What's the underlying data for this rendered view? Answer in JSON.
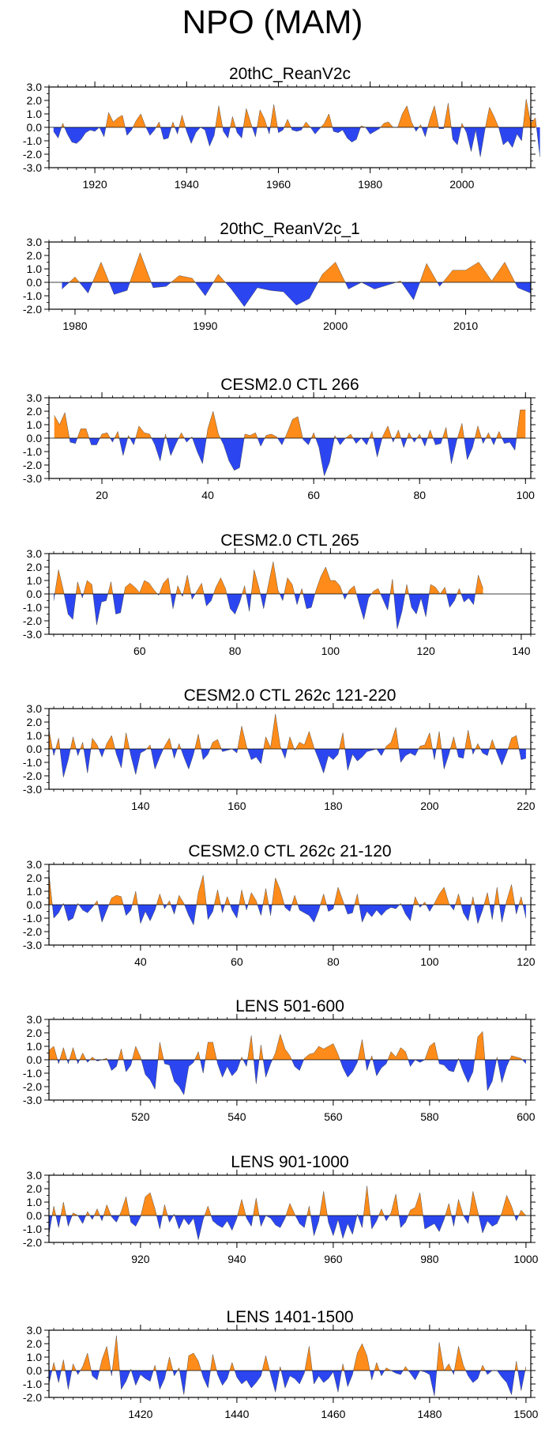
{
  "title": "NPO (MAM)",
  "colors": {
    "positive": "#ff8c1a",
    "negative": "#2b46f0",
    "axis": "#000000"
  },
  "chart_data": [
    {
      "type": "area",
      "title": "20thC_ReanV2c",
      "xlim": [
        1910,
        2015
      ],
      "ylim": [
        -3,
        3
      ],
      "yticks": [
        "3.0",
        "2.0",
        "1.0",
        "0.0",
        "-1.0",
        "-2.0",
        "-3.0"
      ],
      "xticks": [
        1920,
        1940,
        1960,
        1980,
        2000
      ],
      "x_start": 1911,
      "values": [
        -0.3,
        -0.8,
        0.3,
        -0.5,
        -1.1,
        -1.2,
        -0.9,
        -0.4,
        -0.2,
        -0.3,
        0.0,
        -0.7,
        1.1,
        0.4,
        0.7,
        0.9,
        -0.6,
        -0.2,
        0.5,
        1.0,
        0.1,
        -0.6,
        -0.2,
        0.4,
        -0.9,
        -0.8,
        0.4,
        -0.5,
        0.9,
        -0.3,
        -1.2,
        -0.4,
        0.0,
        -0.2,
        -1.4,
        -0.6,
        1.6,
        -0.3,
        -0.8,
        0.8,
        -0.4,
        -0.8,
        1.4,
        0.3,
        -0.7,
        1.3,
        0.6,
        -0.5,
        1.7,
        -0.4,
        -0.2,
        0.6,
        -0.2,
        -0.3,
        -0.2,
        0.4,
        0.0,
        -0.5,
        -0.1,
        0.3,
        1.0,
        -0.3,
        -0.4,
        -0.2,
        -0.8,
        -1.1,
        -0.9,
        0.1,
        0.0,
        -0.5,
        -0.3,
        -0.1,
        0.3,
        0.4,
        0.0,
        0.0,
        1.0,
        1.6,
        0.4,
        -0.3,
        0.2,
        -0.7,
        0.6,
        1.6,
        -0.1,
        -0.1,
        1.8,
        -0.9,
        -1.3,
        0.3,
        -0.4,
        -1.8,
        -0.2,
        -2.2,
        -0.2,
        1.5,
        0.8,
        0.0,
        -1.3,
        -1.0,
        -1.5,
        -0.5,
        -1.0,
        2.1,
        0.3,
        0.7,
        -2.2
      ]
    },
    {
      "type": "area",
      "title": "20thC_ReanV2c_1",
      "xlim": [
        1978,
        2015
      ],
      "ylim": [
        -2,
        3
      ],
      "yticks": [
        "3.0",
        "2.0",
        "1.0",
        "0.0",
        "-1.0",
        "-2.0"
      ],
      "xticks": [
        1980,
        1990,
        2000,
        2010
      ],
      "x_start": 1979,
      "values": [
        -0.5,
        0.4,
        -0.8,
        1.5,
        -0.9,
        -0.6,
        2.2,
        -0.4,
        -0.3,
        0.5,
        0.3,
        -1.0,
        0.6,
        -0.5,
        -1.8,
        -0.4,
        -0.6,
        -0.7,
        -1.7,
        -1.2,
        0.6,
        1.5,
        -0.5,
        0.0,
        -0.5,
        -0.2,
        0.1,
        -1.3,
        1.4,
        -0.3,
        0.9,
        0.9,
        1.5,
        0.1,
        1.5,
        -0.4,
        -0.8
      ]
    },
    {
      "type": "area",
      "title": "CESM2.0 CTL 266",
      "xlim": [
        10,
        101
      ],
      "ylim": [
        -3,
        3
      ],
      "yticks": [
        "3.0",
        "2.0",
        "1.0",
        "0.0",
        "-1.0",
        "-2.0",
        "-3.0"
      ],
      "xticks": [
        20,
        40,
        60,
        80,
        100
      ],
      "x_start": 11,
      "values": [
        1.7,
        1.0,
        1.9,
        -0.3,
        -0.4,
        0.7,
        0.7,
        -0.5,
        -0.5,
        0.3,
        0.4,
        -0.3,
        0.5,
        -1.3,
        0.2,
        -0.5,
        0.9,
        0.4,
        0.3,
        -0.5,
        -1.7,
        0.3,
        -1.3,
        -0.4,
        0.4,
        -0.3,
        0.1,
        -1.0,
        -1.9,
        0.7,
        2.0,
        0.3,
        -0.5,
        -1.7,
        -2.4,
        -2.2,
        0.3,
        0.2,
        0.4,
        -0.6,
        0.2,
        0.3,
        0.1,
        -0.5,
        0.4,
        1.4,
        1.6,
        -0.1,
        -0.5,
        0.4,
        -0.7,
        -2.8,
        -1.8,
        0.2,
        -0.5,
        0.0,
        0.3,
        -0.4,
        0.0,
        -0.5,
        0.5,
        -1.4,
        0.1,
        0.9,
        -0.3,
        0.6,
        -0.7,
        0.4,
        -0.3,
        0.3,
        -0.6,
        0.6,
        -0.5,
        -0.4,
        0.8,
        -1.9,
        -0.2,
        1.1,
        -1.6,
        -0.7,
        0.9,
        -0.4,
        0.4,
        -0.5,
        0.5,
        -0.4,
        -0.3,
        -0.9,
        2.1,
        2.1
      ]
    },
    {
      "type": "area",
      "title": "CESM2.0 CTL 265",
      "xlim": [
        41,
        142
      ],
      "ylim": [
        -3,
        3
      ],
      "yticks": [
        "3.0",
        "2.0",
        "1.0",
        "0.0",
        "-1.0",
        "-2.0",
        "-3.0"
      ],
      "xticks": [
        60,
        80,
        100,
        120,
        140
      ],
      "x_start": 42,
      "values": [
        -0.5,
        1.8,
        0.3,
        -1.5,
        -1.9,
        0.9,
        -0.3,
        1.0,
        0.7,
        -2.3,
        -0.6,
        -0.5,
        0.9,
        -1.5,
        -1.4,
        0.5,
        0.8,
        0.5,
        0.1,
        1.0,
        0.8,
        0.3,
        -0.1,
        0.8,
        1.2,
        -1.1,
        0.6,
        -0.2,
        1.4,
        -0.4,
        0.2,
        0.8,
        -0.9,
        -0.5,
        0.5,
        1.2,
        0.4,
        -1.1,
        -1.5,
        -0.6,
        0.6,
        -1.3,
        1.8,
        0.5,
        -1.1,
        0.7,
        2.4,
        0.3,
        -0.5,
        1.2,
        0.7,
        -0.8,
        0.4,
        -1.1,
        -1.0,
        0.3,
        1.3,
        2.0,
        1.0,
        1.0,
        0.6,
        -0.4,
        0.3,
        0.6,
        -0.7,
        -1.9,
        -0.3,
        0.2,
        0.4,
        -0.4,
        -1.2,
        1.1,
        -2.6,
        -1.3,
        0.7,
        -1.0,
        -1.5,
        -0.3,
        -1.7,
        0.7,
        0.5,
        0.0,
        0.5,
        -1.0,
        -0.5,
        0.4,
        -0.6,
        -0.3,
        -0.8,
        1.4,
        0.4
      ]
    },
    {
      "type": "area",
      "title": "CESM2.0 CTL 262c 121-220",
      "xlim": [
        121,
        221
      ],
      "ylim": [
        -3,
        3
      ],
      "yticks": [
        "3.0",
        "2.0",
        "1.0",
        "0.0",
        "-1.0",
        "-2.0",
        "-3.0"
      ],
      "xticks": [
        140,
        160,
        180,
        200,
        220
      ],
      "x_start": 121,
      "values": [
        1.4,
        -0.5,
        0.8,
        -2.1,
        -0.8,
        0.9,
        -0.5,
        0.5,
        -1.8,
        0.8,
        0.3,
        -0.6,
        0.4,
        1.0,
        -0.4,
        -1.4,
        1.2,
        -0.5,
        -1.9,
        -0.3,
        -0.1,
        0.3,
        -1.5,
        -0.6,
        0.2,
        0.8,
        -0.7,
        0.4,
        -0.6,
        -1.5,
        -0.4,
        1.1,
        -0.8,
        -0.4,
        0.5,
        0.7,
        -0.2,
        -0.1,
        0.0,
        -0.3,
        1.7,
        0.2,
        -0.8,
        -0.6,
        -1.1,
        0.9,
        0.1,
        2.6,
        0.2,
        -0.7,
        0.9,
        -0.1,
        0.5,
        0.3,
        1.3,
        0.1,
        -0.8,
        -1.8,
        -0.5,
        -0.8,
        -0.4,
        1.2,
        -1.6,
        -0.4,
        -0.9,
        -0.6,
        -0.2,
        -0.1,
        0.0,
        -0.5,
        0.2,
        0.5,
        1.6,
        -1.0,
        -0.5,
        -0.3,
        -0.5,
        0.2,
        0.3,
        1.2,
        -0.8,
        1.3,
        -1.5,
        -0.4,
        0.9,
        -0.6,
        -0.7,
        1.4,
        -0.4,
        0.4,
        -0.3,
        -0.5,
        0.7,
        -0.3,
        -1.2,
        -0.3,
        0.8,
        1.0,
        -0.8,
        -0.7
      ]
    },
    {
      "type": "area",
      "title": "CESM2.0 CTL 262c 21-120",
      "xlim": [
        21,
        121
      ],
      "ylim": [
        -3,
        3
      ],
      "yticks": [
        "3.0",
        "2.0",
        "1.0",
        "0.0",
        "-1.0",
        "-2.0",
        "-3.0"
      ],
      "xticks": [
        40,
        60,
        80,
        100,
        120
      ],
      "x_start": 21,
      "values": [
        2.3,
        -1.0,
        -0.6,
        0.1,
        -1.2,
        -1.0,
        0.1,
        -0.4,
        -0.6,
        -0.2,
        0.3,
        -1.3,
        -0.4,
        0.5,
        0.7,
        0.6,
        -0.8,
        -0.4,
        1.0,
        -1.4,
        -0.5,
        -1.2,
        -0.4,
        0.8,
        -0.3,
        0.3,
        -0.7,
        0.7,
        0.1,
        -0.8,
        -1.5,
        0.9,
        2.2,
        -1.1,
        -0.5,
        1.1,
        -0.6,
        0.6,
        -0.4,
        -1.0,
        1.1,
        -0.4,
        0.9,
        0.3,
        -0.8,
        1.2,
        -0.8,
        2.0,
        1.1,
        -0.2,
        -0.5,
        0.7,
        -0.4,
        -0.6,
        -0.8,
        -1.3,
        -0.4,
        0.8,
        -0.5,
        -0.3,
        1.3,
        0.3,
        -0.7,
        -0.6,
        0.8,
        -1.3,
        -0.5,
        -0.9,
        -0.4,
        -0.8,
        -0.4,
        -0.2,
        -0.3,
        0.1,
        -0.7,
        -1.2,
        0.6,
        -0.2,
        0.2,
        -0.5,
        0.1,
        0.8,
        1.3,
        0.1,
        -0.4,
        0.8,
        -0.6,
        -1.2,
        0.6,
        -1.4,
        -0.4,
        0.9,
        -1.1,
        1.3,
        -1.3,
        0.3,
        1.5,
        -0.7,
        0.6,
        -1.0
      ]
    },
    {
      "type": "area",
      "title": "LENS 501-600",
      "xlim": [
        501,
        601
      ],
      "ylim": [
        -3,
        3
      ],
      "yticks": [
        "3.0",
        "2.0",
        "1.0",
        "0.0",
        "-1.0",
        "-2.0",
        "-3.0"
      ],
      "xticks": [
        520,
        540,
        560,
        580,
        600
      ],
      "x_start": 501,
      "values": [
        0.7,
        1.0,
        -0.3,
        0.9,
        -0.3,
        0.9,
        -0.3,
        0.5,
        -0.2,
        0.2,
        -0.1,
        0.0,
        0.1,
        -0.8,
        -0.5,
        0.8,
        -0.9,
        -0.4,
        1.0,
        0.2,
        -1.1,
        -1.5,
        -2.2,
        1.3,
        -0.3,
        -0.4,
        -1.6,
        -2.0,
        -2.6,
        -0.5,
        -0.2,
        0.6,
        -1.0,
        1.3,
        1.3,
        -0.3,
        -1.3,
        -0.5,
        -1.2,
        -0.8,
        0.2,
        -0.5,
        1.8,
        -1.8,
        1.1,
        -1.3,
        -0.3,
        0.5,
        1.9,
        0.8,
        0.3,
        -0.5,
        -0.8,
        0.1,
        0.4,
        0.5,
        1.0,
        0.8,
        1.0,
        1.2,
        0.4,
        -0.6,
        -1.3,
        -0.9,
        -0.2,
        1.5,
        -0.8,
        0.3,
        -1.2,
        -0.6,
        -0.3,
        0.6,
        0.2,
        0.9,
        0.6,
        -0.5,
        0.0,
        -0.2,
        0.0,
        1.0,
        1.3,
        -0.3,
        -0.4,
        -0.8,
        -0.9,
        0.1,
        -0.9,
        -1.7,
        -0.9,
        1.7,
        2.1,
        -2.3,
        -1.6,
        0.2,
        -1.7,
        -0.5,
        0.3,
        0.2,
        0.1,
        -0.3
      ]
    },
    {
      "type": "area",
      "title": "LENS 901-1000",
      "xlim": [
        901,
        1001
      ],
      "ylim": [
        -2,
        3
      ],
      "yticks": [
        "3.0",
        "2.0",
        "1.0",
        "0.0",
        "-1.0",
        "-2.0"
      ],
      "xticks": [
        920,
        940,
        960,
        980,
        1000
      ],
      "x_start": 901,
      "values": [
        -1.4,
        0.7,
        -0.9,
        1.0,
        -0.8,
        0.2,
        0.0,
        -0.6,
        0.3,
        -0.3,
        0.5,
        -0.4,
        0.8,
        -0.1,
        -0.5,
        0.3,
        1.4,
        -0.5,
        -0.8,
        -0.1,
        1.4,
        1.7,
        0.5,
        -1.0,
        0.8,
        -0.5,
        0.1,
        -1.0,
        -0.2,
        -0.7,
        -0.2,
        -1.8,
        -0.3,
        0.7,
        -0.4,
        -0.7,
        -0.9,
        -0.4,
        -1.1,
        -0.2,
        1.2,
        -0.2,
        -0.8,
        1.3,
        -0.8,
        0.0,
        -0.2,
        -0.7,
        -0.9,
        -0.2,
        0.9,
        0.1,
        -0.6,
        -0.9,
        0.7,
        -1.5,
        -0.4,
        1.8,
        -0.5,
        -1.5,
        -0.3,
        -1.7,
        -0.6,
        -1.4,
        0.1,
        -0.9,
        2.2,
        -1.0,
        -0.4,
        0.5,
        -0.4,
        0.2,
        1.6,
        -0.9,
        -0.5,
        0.4,
        0.6,
        1.7,
        -1.0,
        -0.8,
        -0.6,
        -1.2,
        -0.3,
        0.9,
        -0.8,
        1.2,
        0.0,
        -0.6,
        1.8,
        0.3,
        -1.3,
        -0.4,
        -0.8,
        -0.6,
        0.2,
        1.5,
        0.7,
        -0.4,
        0.4,
        0.0
      ]
    },
    {
      "type": "area",
      "title": "LENS 1401-1500",
      "xlim": [
        1401,
        1501
      ],
      "ylim": [
        -2,
        3
      ],
      "yticks": [
        "3.0",
        "2.0",
        "1.0",
        "0.0",
        "-1.0",
        "-2.0"
      ],
      "xticks": [
        1420,
        1440,
        1460,
        1480,
        1500
      ],
      "x_start": 1401,
      "values": [
        -1.0,
        0.6,
        -0.9,
        0.8,
        -1.4,
        0.5,
        -0.3,
        0.3,
        1.3,
        -0.4,
        -0.7,
        0.8,
        1.8,
        -0.4,
        2.6,
        -1.4,
        -0.8,
        0.1,
        -1.1,
        -0.3,
        -0.6,
        -0.8,
        0.4,
        -1.4,
        -0.6,
        1.0,
        -0.4,
        0.2,
        -1.8,
        1.1,
        1.3,
        0.7,
        -0.5,
        -1.3,
        1.2,
        -0.3,
        -1.1,
        -0.6,
        0.6,
        -0.5,
        -1.0,
        -0.7,
        -1.3,
        -0.9,
        -0.4,
        1.1,
        -0.3,
        -1.6,
        0.3,
        -1.3,
        -0.4,
        -0.6,
        -1.0,
        -0.2,
        1.8,
        -1.0,
        -0.4,
        -0.9,
        -0.6,
        -0.1,
        -1.6,
        0.5,
        -1.2,
        -0.3,
        1.3,
        2.0,
        1.1,
        -0.7,
        0.6,
        -0.4,
        0.2,
        0.0,
        -0.2,
        -0.3,
        0.3,
        -0.2,
        -0.7,
        0.0,
        -0.1,
        -0.3,
        -1.9,
        2.1,
        0.0,
        0.5,
        -0.3,
        1.8,
        0.4,
        -0.4,
        -0.9,
        -0.6,
        0.4,
        -0.3,
        0.0,
        0.0,
        -0.5,
        -0.9,
        -1.8,
        0.7,
        -1.5,
        0.3
      ]
    }
  ]
}
